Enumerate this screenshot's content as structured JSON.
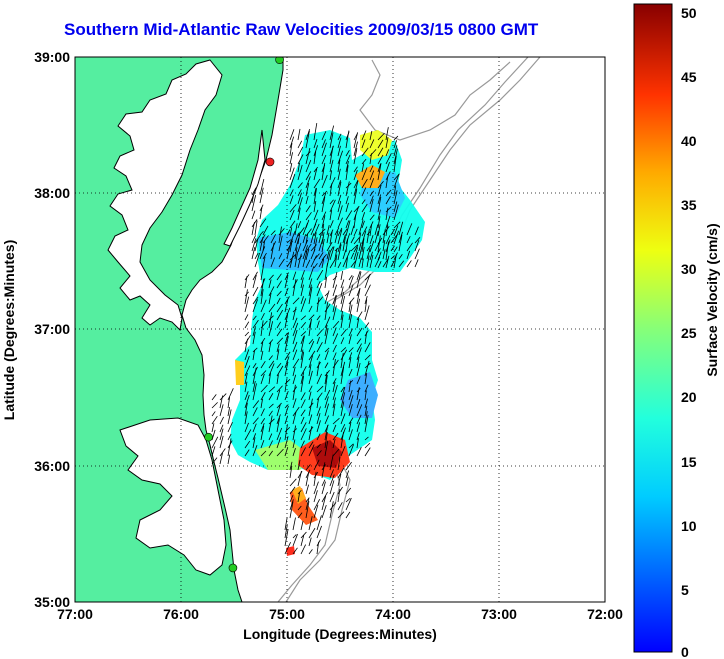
{
  "title": "Southern Mid-Atlantic Raw Velocities 2009/03/15 0800 GMT",
  "map": {
    "xlabel": "Longitude (Degrees:Minutes)",
    "ylabel": "Latitude (Degrees:Minutes)",
    "x_ticks": [
      "77:00",
      "76:00",
      "75:00",
      "74:00",
      "73:00",
      "72:00"
    ],
    "y_ticks": [
      "39:00",
      "38:00",
      "37:00",
      "36:00",
      "35:00"
    ],
    "lon_range": [
      -77,
      -72
    ],
    "lat_range": [
      35,
      39
    ],
    "land_color": "#55eea0",
    "grid": "dotted"
  },
  "colorbar": {
    "label": "Surface Velocity (cm/s)",
    "ticks": [
      "0",
      "5",
      "10",
      "15",
      "20",
      "25",
      "30",
      "35",
      "40",
      "45",
      "50"
    ],
    "range": [
      0,
      50
    ],
    "colormap": "jet"
  },
  "stations": [
    {
      "lon": -75.07,
      "lat": 38.98,
      "color": "#22cc22"
    },
    {
      "lon": -75.16,
      "lat": 38.23,
      "color": "#ee2222"
    },
    {
      "lon": -75.74,
      "lat": 36.21,
      "color": "#22cc22"
    },
    {
      "lon": -75.51,
      "lat": 35.25,
      "color": "#22cc22"
    }
  ]
}
